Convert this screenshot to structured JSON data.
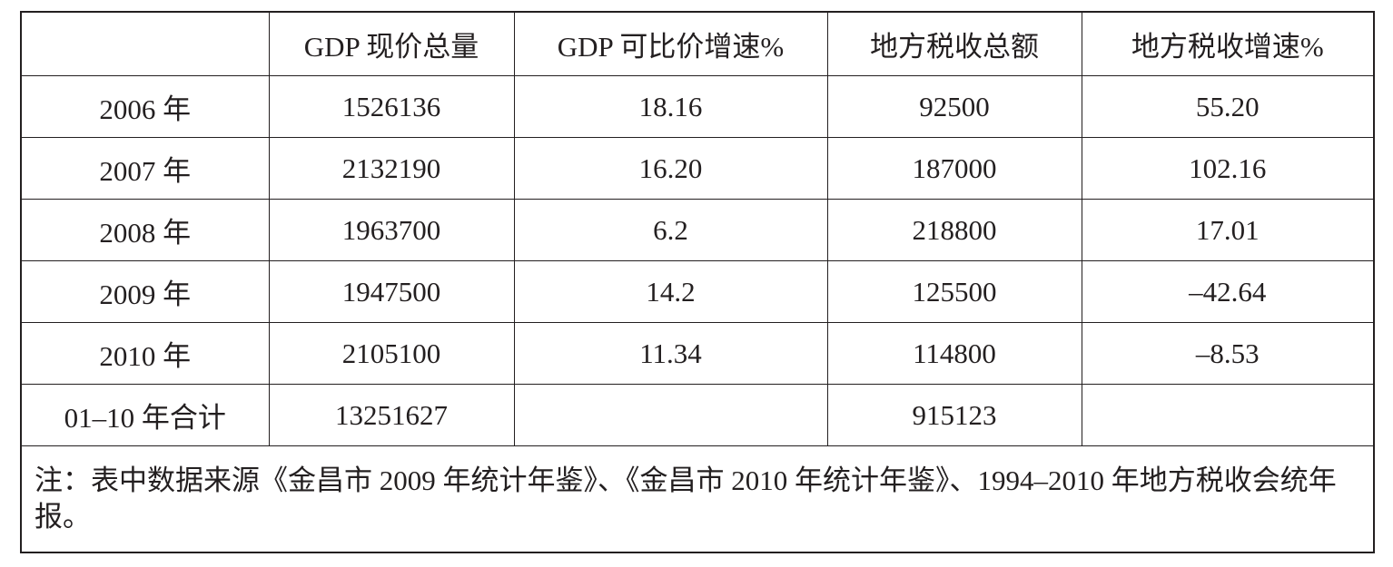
{
  "table": {
    "header": [
      null,
      "GDP 现价总量",
      "GDP 可比价增速%",
      "地方税收总额",
      "地方税收增速%"
    ],
    "rows": [
      [
        "2006 年",
        "1526136",
        "18.16",
        "92500",
        "55.20"
      ],
      [
        "2007 年",
        "2132190",
        "16.20",
        "187000",
        "102.16"
      ],
      [
        "2008 年",
        "1963700",
        "6.2",
        "218800",
        "17.01"
      ],
      [
        "2009 年",
        "1947500",
        "14.2",
        "125500",
        "–42.64"
      ],
      [
        "2010 年",
        "2105100",
        "11.34",
        "114800",
        "–8.53"
      ],
      [
        "01–10 年合计",
        "13251627",
        null,
        "915123",
        null
      ]
    ],
    "note": "注：表中数据来源《金昌市 2009 年统计年鉴》、《金昌市 2010 年统计年鉴》、1994–2010 年地方税收会统年报。"
  }
}
